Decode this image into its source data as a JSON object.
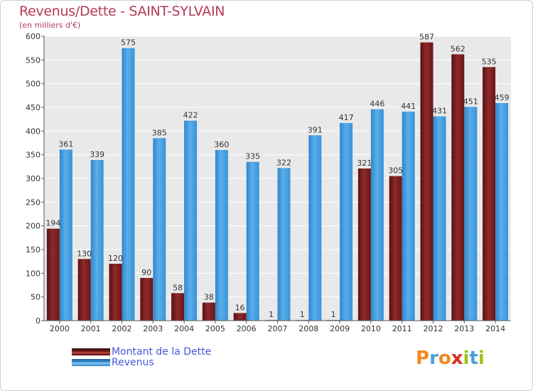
{
  "title": "Revenus/Dette - SAINT-SYLVAIN",
  "subtitle": "(en milliers d'€)",
  "legend": {
    "items": [
      {
        "label": "Montant de la Dette",
        "color": "#7a1d1d"
      },
      {
        "label": "Revenus",
        "color": "#3d95d8"
      }
    ]
  },
  "logo": {
    "letters": [
      "P",
      "r",
      "o",
      "x",
      "i",
      "t",
      "i"
    ],
    "colors": [
      "#f08a1c",
      "#4aa0d8",
      "#f08a1c",
      "#d8301c",
      "#9cc21c",
      "#4aa0d8",
      "#9cc21c"
    ]
  },
  "chart_data": {
    "type": "bar",
    "title": "Revenus/Dette - SAINT-SYLVAIN",
    "ylabel": "(en milliers d'€)",
    "categories": [
      "2000",
      "2001",
      "2002",
      "2003",
      "2004",
      "2005",
      "2006",
      "2007",
      "2008",
      "2009",
      "2010",
      "2011",
      "2012",
      "2013",
      "2014"
    ],
    "series": [
      {
        "name": "Montant de la Dette",
        "color": "#7a1d1d",
        "values": [
          194,
          130,
          120,
          90,
          58,
          38,
          16,
          1,
          1,
          1,
          321,
          305,
          587,
          562,
          535
        ]
      },
      {
        "name": "Revenus",
        "color": "#3d95d8",
        "values": [
          361,
          339,
          575,
          385,
          422,
          360,
          335,
          322,
          391,
          417,
          446,
          441,
          431,
          451,
          459
        ]
      }
    ],
    "ylim": [
      0,
      600
    ],
    "yticks": [
      0,
      50,
      100,
      150,
      200,
      250,
      300,
      350,
      400,
      450,
      500,
      550,
      600
    ],
    "grid": true,
    "legend_position": "bottom-left"
  }
}
